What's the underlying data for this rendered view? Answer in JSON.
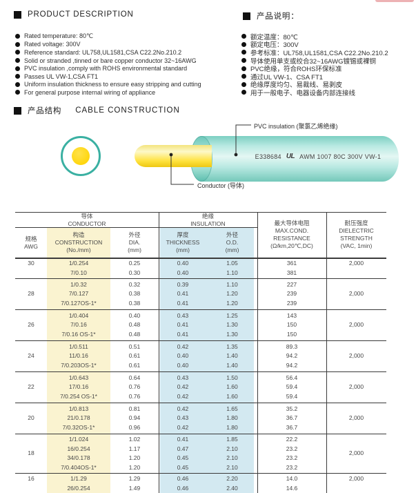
{
  "colors": {
    "teal_accent": "#3ab0a2",
    "conductor_yellow": "#ffd60e",
    "table_stripe_cream": "#faf3d0",
    "table_stripe_blue": "#d3e9f1"
  },
  "product_description": {
    "heading": "PRODUCT  DESCRIPTION",
    "items": [
      "Rated temperature: 80℃",
      "Rated voltage: 300V",
      "Reference standard: UL758,UL1581,CSA C22.2No.210.2",
      "Solid or stranded ,tinned or bare copper conductor 32~16AWG",
      "PVC insulation ,comply with ROHS environmental standard",
      "Passes UL VW-1,CSA FT1",
      "Uniform insulation thickness to ensure easy stripping and cutting",
      "For general purpose internal wiring of appliance"
    ]
  },
  "product_description_cn": {
    "heading": "产品说明：",
    "items": [
      "额定温度：80℃",
      "额定电压：300V",
      "参考标准：UL758,UL1581,CSA C22.2No.210.2",
      "导体使用单支或绞合32~16AWG镀锡或裸铜",
      "PVC绝缘，符合ROHS环保标准",
      "通过UL VW-1、CSA FT1",
      "绝缘厚度均匀、易裁线、易剥皮",
      "用于一般电子、电器设备内部连接线"
    ]
  },
  "construction_section": {
    "heading_cn": "产品结构",
    "heading_en": "CABLE  CONSTRUCTION",
    "labels": {
      "pvc": "PVC insulation (聚氯乙烯绝缘)",
      "conductor": "Conductor (导体)"
    },
    "marking": {
      "cert_no": "E338684",
      "ul_mark": "UL",
      "text": "AWM 1007 80C 300V VW-1"
    }
  },
  "spec_table": {
    "group_headers": {
      "conductor_cn": "导体",
      "conductor_en": "CONDUCTOR",
      "insulation_cn": "绝缘",
      "insulation_en": "INSULATION"
    },
    "columns": {
      "awg": [
        "规格",
        "AWG"
      ],
      "construction": [
        "构造",
        "CONSTRUCTION",
        "(No./mm)"
      ],
      "dia": [
        "外径",
        "DIA.",
        "(mm)"
      ],
      "thickness": [
        "厚度",
        "THICKNESS",
        "(mm)"
      ],
      "od": [
        "外径",
        "O.D.",
        "(mm)"
      ],
      "resistance": [
        "最大导体电阻",
        "MAX.COND.",
        "RESISTANCE",
        "(Ω/km,20℃,DC)"
      ],
      "dielectric": [
        "耐压强度",
        "DIELECTRIC",
        "STRENGTH",
        "(VAC, 1min)"
      ]
    },
    "rows": [
      {
        "awg": "30",
        "dielectric": "2,000",
        "lines": [
          {
            "construction": "1/0.254",
            "dia": "0.25",
            "thickness": "0.40",
            "od": "1.05",
            "resistance": "361"
          },
          {
            "construction": "7/0.10",
            "dia": "0.30",
            "thickness": "0.40",
            "od": "1.10",
            "resistance": "381"
          }
        ]
      },
      {
        "awg": "28",
        "dielectric": "2,000",
        "lines": [
          {
            "construction": "1/0.32",
            "dia": "0.32",
            "thickness": "0.39",
            "od": "1.10",
            "resistance": "227"
          },
          {
            "construction": "7/0.127",
            "dia": "0.38",
            "thickness": "0.41",
            "od": "1.20",
            "resistance": "239"
          },
          {
            "construction": "7/0.127OS-1*",
            "dia": "0.38",
            "thickness": "0.41",
            "od": "1.20",
            "resistance": "239"
          }
        ]
      },
      {
        "awg": "26",
        "dielectric": "2,000",
        "lines": [
          {
            "construction": "1/0.404",
            "dia": "0.40",
            "thickness": "0.43",
            "od": "1.25",
            "resistance": "143"
          },
          {
            "construction": "7/0.16",
            "dia": "0.48",
            "thickness": "0.41",
            "od": "1.30",
            "resistance": "150"
          },
          {
            "construction": "7/0.16 OS-1*",
            "dia": "0.48",
            "thickness": "0.41",
            "od": "1.30",
            "resistance": "150"
          }
        ]
      },
      {
        "awg": "24",
        "dielectric": "2,000",
        "lines": [
          {
            "construction": "1/0.511",
            "dia": "0.51",
            "thickness": "0.42",
            "od": "1.35",
            "resistance": "89.3"
          },
          {
            "construction": "11/0.16",
            "dia": "0.61",
            "thickness": "0.40",
            "od": "1.40",
            "resistance": "94.2"
          },
          {
            "construction": "7/0.203OS-1*",
            "dia": "0.61",
            "thickness": "0.40",
            "od": "1.40",
            "resistance": "94.2"
          }
        ]
      },
      {
        "awg": "22",
        "dielectric": "2,000",
        "lines": [
          {
            "construction": "1/0.643",
            "dia": "0.64",
            "thickness": "0.43",
            "od": "1.50",
            "resistance": "56.4"
          },
          {
            "construction": "17/0.16",
            "dia": "0.76",
            "thickness": "0.42",
            "od": "1.60",
            "resistance": "59.4"
          },
          {
            "construction": "7/0.254 OS-1*",
            "dia": "0.76",
            "thickness": "0.42",
            "od": "1.60",
            "resistance": "59.4"
          }
        ]
      },
      {
        "awg": "20",
        "dielectric": "2,000",
        "lines": [
          {
            "construction": "1/0.813",
            "dia": "0.81",
            "thickness": "0.42",
            "od": "1.65",
            "resistance": "35.2"
          },
          {
            "construction": "21/0.178",
            "dia": "0.94",
            "thickness": "0.43",
            "od": "1.80",
            "resistance": "36.7"
          },
          {
            "construction": "7/0.32OS-1*",
            "dia": "0.96",
            "thickness": "0.42",
            "od": "1.80",
            "resistance": "36.7"
          }
        ]
      },
      {
        "awg": "18",
        "dielectric": "2,000",
        "lines": [
          {
            "construction": "1/1.024",
            "dia": "1.02",
            "thickness": "0.41",
            "od": "1.85",
            "resistance": "22.2"
          },
          {
            "construction": "16/0.254",
            "dia": "1.17",
            "thickness": "0.47",
            "od": "2.10",
            "resistance": "23.2"
          },
          {
            "construction": "34/0.178",
            "dia": "1.20",
            "thickness": "0.45",
            "od": "2.10",
            "resistance": "23.2"
          },
          {
            "construction": "7/0.404OS-1*",
            "dia": "1.20",
            "thickness": "0.45",
            "od": "2.10",
            "resistance": "23.2"
          }
        ]
      },
      {
        "awg": "16",
        "dielectric": "2,000",
        "lines": [
          {
            "construction": "1/1.29",
            "dia": "1.29",
            "thickness": "0.46",
            "od": "2.20",
            "resistance": "14.0"
          },
          {
            "construction": "26/0.254",
            "dia": "1.49",
            "thickness": "0.46",
            "od": "2.40",
            "resistance": "14.6"
          }
        ]
      }
    ]
  }
}
